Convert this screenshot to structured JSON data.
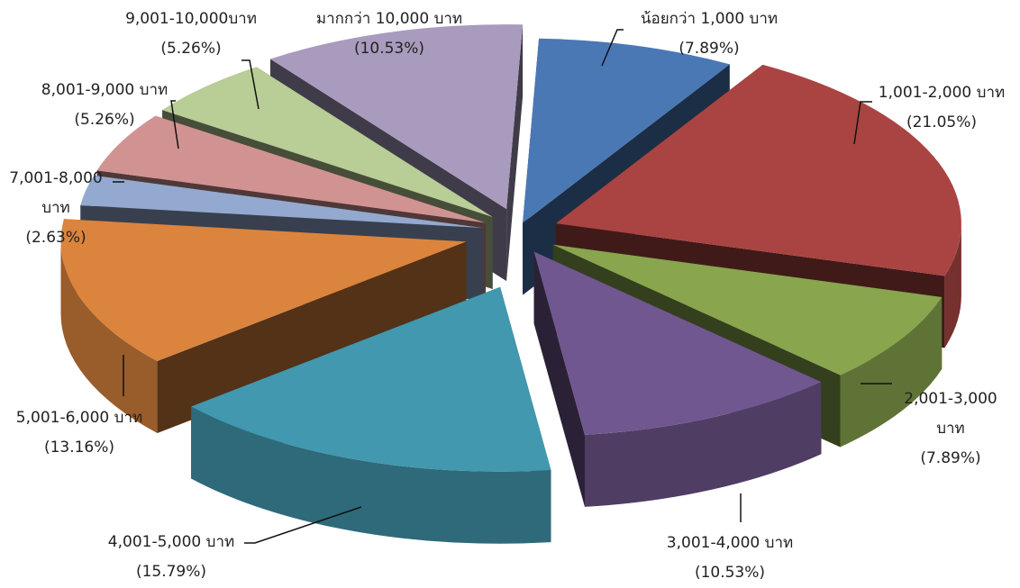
{
  "chart_data": {
    "type": "pie",
    "title": "",
    "style": "3d-exploded",
    "slices": [
      {
        "label": "น้อยกว่า 1,000 บาท",
        "value": 7.89,
        "pct_label": "(7.89%)",
        "color": "#4A78B5",
        "label_lines": [
          "น้อยกว่า 1,000 บาท"
        ]
      },
      {
        "label": "1,001-2,000 บาท",
        "value": 21.05,
        "pct_label": "(21.05%)",
        "color": "#A94442",
        "label_lines": [
          "1,001-2,000 บาท"
        ]
      },
      {
        "label": "2,001-3,000 บาท",
        "value": 7.89,
        "pct_label": "(7.89%)",
        "color": "#89A54E",
        "label_lines": [
          "2,001-3,000",
          "บาท"
        ]
      },
      {
        "label": "3,001-4,000 บาท",
        "value": 10.53,
        "pct_label": "(10.53%)",
        "color": "#71578F",
        "label_lines": [
          "3,001-4,000 บาท"
        ]
      },
      {
        "label": "4,001-5,000 บาท",
        "value": 15.79,
        "pct_label": "(15.79%)",
        "color": "#4198AF",
        "label_lines": [
          "4,001-5,000 บาท"
        ]
      },
      {
        "label": "5,001-6,000 บาท",
        "value": 13.16,
        "pct_label": "(13.16%)",
        "color": "#DB843D",
        "label_lines": [
          "5,001-6,000 บาท"
        ]
      },
      {
        "label": "7,001-8,000 บาท",
        "value": 2.63,
        "pct_label": "(2.63%)",
        "color": "#93A9CF",
        "label_lines": [
          "7,001-8,000",
          "บาท"
        ]
      },
      {
        "label": "8,001-9,000 บาท",
        "value": 5.26,
        "pct_label": "(5.26%)",
        "color": "#D19392",
        "label_lines": [
          "8,001-9,000 บาท"
        ]
      },
      {
        "label": "9,001-10,000บาท",
        "value": 5.26,
        "pct_label": "(5.26%)",
        "color": "#B9CD96",
        "label_lines": [
          "9,001-10,000บาท"
        ]
      },
      {
        "label": "มากกว่า 10,000 บาท",
        "value": 10.53,
        "pct_label": "(10.53%)",
        "color": "#A99BBD",
        "label_lines": [
          "มากกว่า 10,000 บาท"
        ]
      }
    ]
  }
}
